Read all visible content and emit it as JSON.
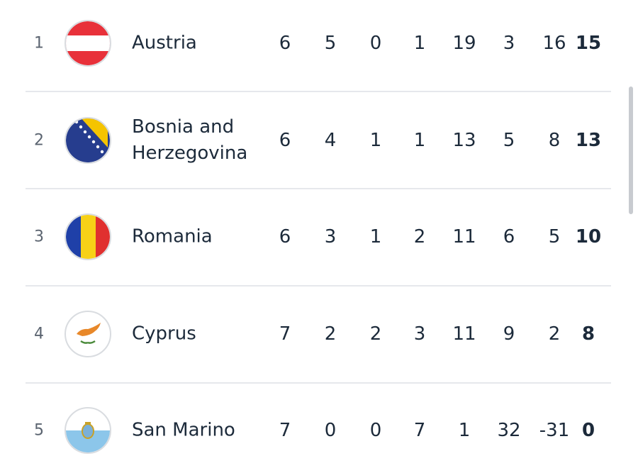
{
  "table": {
    "rows": [
      {
        "rank": 1,
        "team": "Austria",
        "stats": [
          6,
          5,
          0,
          1,
          19,
          3,
          16,
          15
        ]
      },
      {
        "rank": 2,
        "team": "Bosnia and Herzegovina",
        "stats": [
          6,
          4,
          1,
          1,
          13,
          5,
          8,
          13
        ]
      },
      {
        "rank": 3,
        "team": "Romania",
        "stats": [
          6,
          3,
          1,
          2,
          11,
          6,
          5,
          10
        ]
      },
      {
        "rank": 4,
        "team": "Cyprus",
        "stats": [
          7,
          2,
          2,
          3,
          11,
          9,
          2,
          8
        ]
      },
      {
        "rank": 5,
        "team": "San Marino",
        "stats": [
          7,
          0,
          0,
          7,
          1,
          32,
          -31,
          0
        ]
      }
    ]
  }
}
